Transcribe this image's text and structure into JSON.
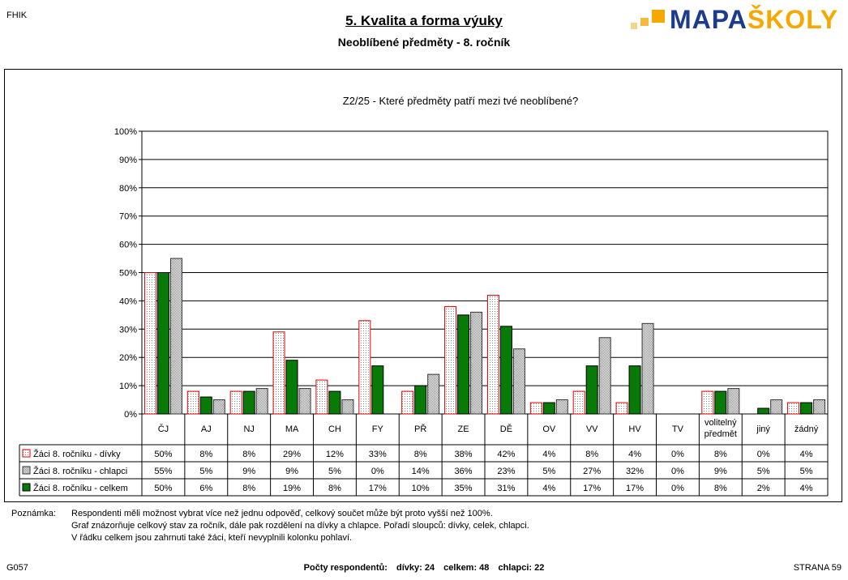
{
  "header": {
    "corner_left": "FHIK",
    "title": "5. Kvalita a forma výuky",
    "subtitle": "Neoblíbené předměty -  8. ročník",
    "logo": {
      "text_a": "MAPA",
      "text_b": "ŠKOLY",
      "colors": {
        "primary": "#1d3b8c",
        "accent": "#f5a800"
      }
    }
  },
  "chart_data": {
    "type": "bar",
    "title": "Z2/25 - Které předměty patří mezi tvé neoblíbené?",
    "categories": [
      "ČJ",
      "AJ",
      "NJ",
      "MA",
      "CH",
      "FY",
      "PŘ",
      "ZE",
      "DĚ",
      "OV",
      "VV",
      "HV",
      "TV",
      "volitelný předmět",
      "jiný",
      "žádný"
    ],
    "ylim": [
      0,
      100
    ],
    "yticks": [
      "0%",
      "10%",
      "20%",
      "30%",
      "40%",
      "50%",
      "60%",
      "70%",
      "80%",
      "90%",
      "100%"
    ],
    "grid": true,
    "series": [
      {
        "name": "Žáci 8. ročníku - dívky",
        "values": [
          50,
          8,
          8,
          29,
          12,
          33,
          8,
          38,
          42,
          4,
          8,
          4,
          0,
          8,
          0,
          4
        ],
        "labels": [
          "50%",
          "8%",
          "8%",
          "29%",
          "12%",
          "33%",
          "8%",
          "38%",
          "42%",
          "4%",
          "8%",
          "4%",
          "0%",
          "8%",
          "0%",
          "4%"
        ]
      },
      {
        "name": "Žáci 8. ročníku - chlapci",
        "values": [
          55,
          5,
          9,
          9,
          5,
          0,
          14,
          36,
          23,
          5,
          27,
          32,
          0,
          9,
          5,
          5
        ],
        "labels": [
          "55%",
          "5%",
          "9%",
          "9%",
          "5%",
          "0%",
          "14%",
          "36%",
          "23%",
          "5%",
          "27%",
          "32%",
          "0%",
          "9%",
          "5%",
          "5%"
        ]
      },
      {
        "name": "Žáci 8. ročníku - celkem",
        "values": [
          50,
          6,
          8,
          19,
          8,
          17,
          10,
          35,
          31,
          4,
          17,
          17,
          0,
          8,
          2,
          4
        ],
        "labels": [
          "50%",
          "6%",
          "8%",
          "19%",
          "8%",
          "17%",
          "10%",
          "35%",
          "31%",
          "4%",
          "17%",
          "17%",
          "0%",
          "8%",
          "2%",
          "4%"
        ]
      }
    ]
  },
  "notes": {
    "label": "Poznámka:",
    "lines": [
      "Respondenti měli možnost vybrat více než jednu odpověď, celkový součet může být proto vyšší než 100%.",
      "Graf znázorňuje celkový stav za ročník, dále pak rozdělení na dívky a chlapce. Pořadí sloupců: dívky, celek, chlapci.",
      "V řádku celkem jsou zahrnuti také žáci, kteří nevyplnili kolonku pohlaví."
    ]
  },
  "footer": {
    "left": "G057",
    "center_label": "Počty respondentů:",
    "counts": [
      "dívky: 24",
      "celkem: 48",
      "chlapci: 22"
    ],
    "right": "STRANA  59"
  }
}
